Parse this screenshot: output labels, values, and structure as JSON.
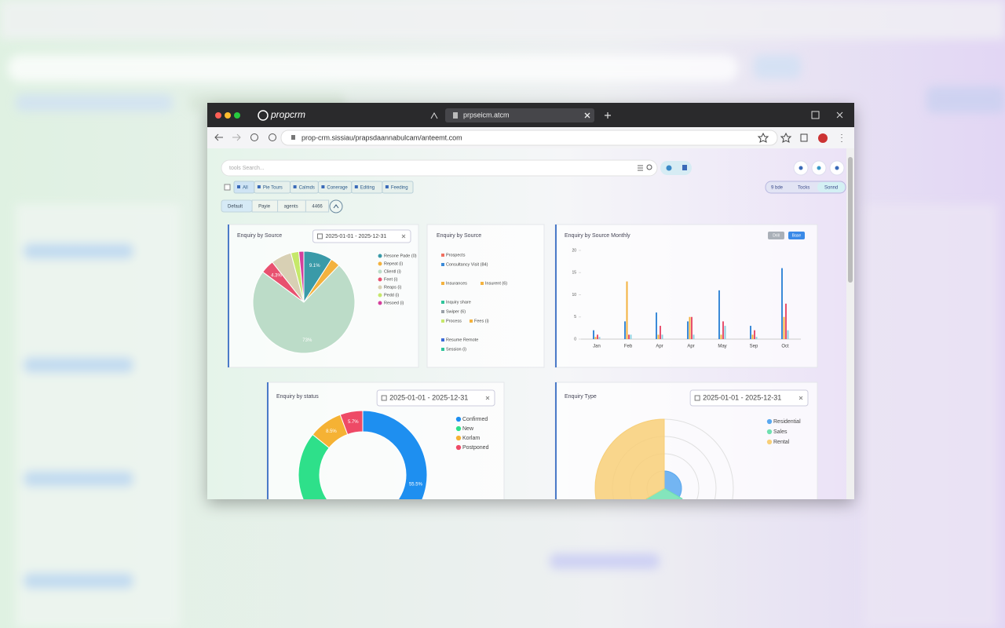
{
  "browser": {
    "brand": "propcrm",
    "tab_title": "prpseicm.atcm",
    "url": "prop-crm.sissiau/prapsdaannabulcam/anteemt.com"
  },
  "toolbar": {
    "search_placeholder": "tools Search...",
    "filters": [
      "All",
      "Pie Tours",
      "Calmds",
      "Conerage",
      "Editing",
      "Feeding"
    ],
    "view_chips": [
      "9 bde",
      "Tocks",
      "Sonnd"
    ],
    "segments": [
      "Default",
      "Payie",
      "agents",
      "4466"
    ]
  },
  "panels": [
    {
      "title": "Enquiry by Source",
      "date_range": "2025-01-01 - 2025-12-31",
      "chart_data": {
        "type": "pie",
        "categories": [
          "Resone Pade (0)",
          "Repeat (i)",
          "Clientl (i)",
          "Feet (i)",
          "Reaps (i)",
          "Pedd (i)",
          "Resoed (i)"
        ],
        "values": [
          9.1,
          3,
          73,
          4.3,
          6.5,
          2.5,
          1.6
        ],
        "value_labels": [
          "9.1%",
          null,
          "73%",
          "4.3%",
          null,
          null,
          null
        ],
        "colors": [
          "#3a9aa8",
          "#f3b23e",
          "#bcdcc8",
          "#e8516f",
          "#d8d0b4",
          "#c6e86a",
          "#d43f9c"
        ]
      }
    },
    {
      "title": "Enquiry by Source",
      "items": [
        {
          "label": "Prospects",
          "color": "#f07060"
        },
        {
          "label": "Consultancy Visit (84)",
          "color": "#3a8ad8"
        },
        {
          "label": "Insurances",
          "color": "#f3b23e"
        },
        {
          "label": "Insurent (6)",
          "color": "#f3b23e"
        },
        {
          "label": "Inquiry share",
          "color": "#2fc49a"
        },
        {
          "label": "Swiper (6)",
          "color": "#9aa0a8"
        },
        {
          "label": "Process",
          "color": "#c6e86a"
        },
        {
          "label": "Fees (i)",
          "color": "#f3b23e"
        },
        {
          "label": "Resume Remote",
          "color": "#3a6ad8"
        },
        {
          "label": "Session (i)",
          "color": "#2fc49a"
        }
      ]
    },
    {
      "title": "Enquiry by Source Monthly",
      "buttons": [
        "Drill",
        "Base"
      ],
      "chart_data": {
        "type": "bar",
        "categories": [
          "Jan",
          "Feb",
          "Apr",
          "Apr",
          "May",
          "Sep",
          "Oct"
        ],
        "series": [
          {
            "color": "#3a8ad8",
            "values": [
              2,
              4,
              6,
              4,
              11,
              3,
              16
            ]
          },
          {
            "color": "#f3b23e",
            "values": [
              0.5,
              13,
              1,
              5,
              1,
              1,
              5
            ]
          },
          {
            "color": "#e8516f",
            "values": [
              1,
              1,
              3,
              5,
              4,
              2,
              8
            ]
          },
          {
            "color": "#8fd0e0",
            "values": [
              0.5,
              1,
              1,
              1,
              3,
              0.5,
              2
            ]
          }
        ],
        "ylim": [
          0,
          20
        ],
        "yticks": [
          0,
          5,
          10,
          15,
          20
        ]
      }
    },
    {
      "title": "Enquiry by status",
      "date_range": "2025-01-01 - 2025-12-31",
      "chart_data": {
        "type": "donut",
        "categories": [
          "Confirmed",
          "New",
          "Korlam",
          "Postponed"
        ],
        "values": [
          55.5,
          30.3,
          8.5,
          5.7
        ],
        "value_labels": [
          "55.5%",
          null,
          "8.5%",
          "5.7%"
        ],
        "colors": [
          "#1e8ff0",
          "#2ee08a",
          "#f5b234",
          "#ee4a66"
        ]
      }
    },
    {
      "title": "Enquiry Type",
      "date_range": "2025-01-01 - 2025-12-31",
      "chart_data": {
        "type": "polar",
        "categories": [
          "Residential",
          "Sales",
          "Rental"
        ],
        "values": [
          2.5,
          3,
          10
        ],
        "rlim": [
          0,
          10
        ],
        "colors": [
          "#5aa8f0",
          "#6fe0b0",
          "#f8cf78"
        ]
      }
    }
  ]
}
